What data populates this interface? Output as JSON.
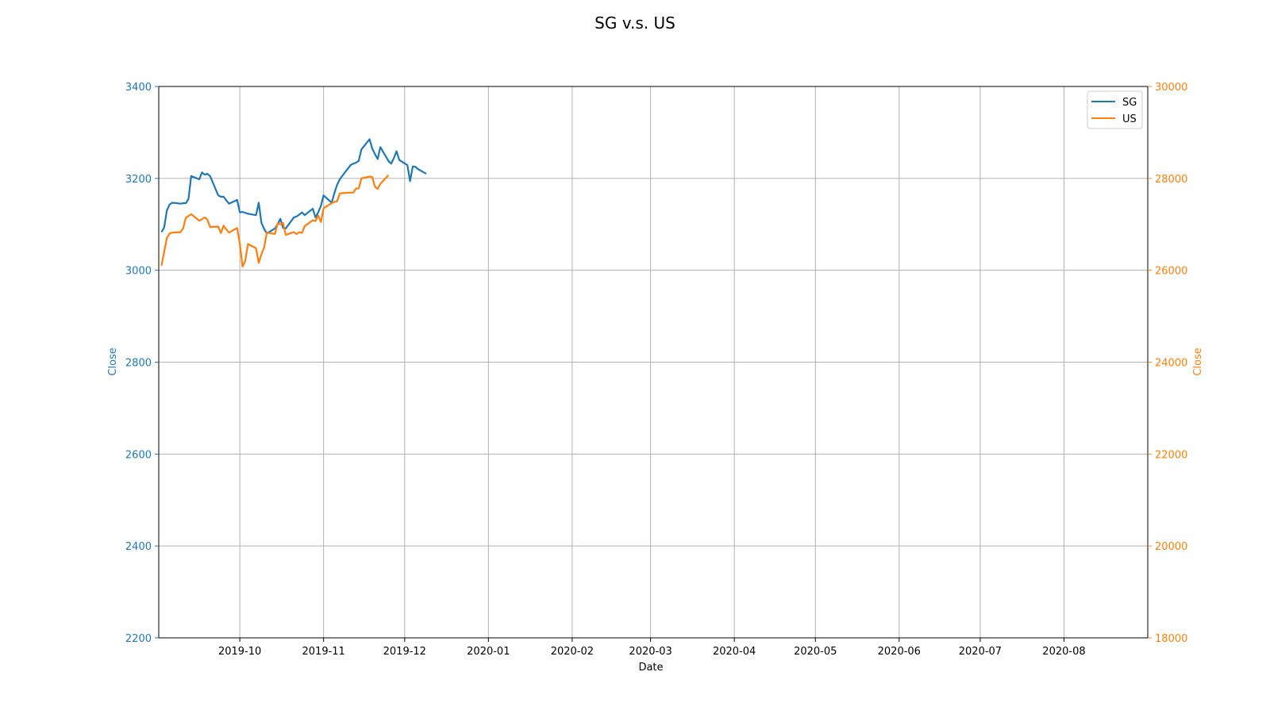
{
  "colors": {
    "left_axis": "#1f77b4",
    "right_axis": "#ff7f0e",
    "grid": "#b0b0b0",
    "spine": "#000000"
  },
  "chart_data": {
    "type": "line",
    "title": "SG v.s. US",
    "xlabel": "Date",
    "ylabel_left": "Close",
    "ylabel_right": "Close",
    "x_range": [
      "2019-09-01",
      "2020-08-31"
    ],
    "ylim_left": [
      2200,
      3400
    ],
    "ylim_right": [
      18000,
      30000
    ],
    "y_ticks_left": [
      2200,
      2400,
      2600,
      2800,
      3000,
      3200,
      3400
    ],
    "y_ticks_right": [
      18000,
      20000,
      22000,
      24000,
      26000,
      28000,
      30000
    ],
    "x_ticks": [
      "2019-10-01",
      "2019-11-01",
      "2019-12-01",
      "2020-01-01",
      "2020-02-01",
      "2020-03-01",
      "2020-04-01",
      "2020-05-01",
      "2020-06-01",
      "2020-07-01",
      "2020-08-01"
    ],
    "x_tick_labels": [
      "2019-10",
      "2019-11",
      "2019-12",
      "2020-01",
      "2020-02",
      "2020-03",
      "2020-04",
      "2020-05",
      "2020-06",
      "2020-07",
      "2020-08"
    ],
    "grid": true,
    "legend_position": "top-right",
    "series": [
      {
        "name": "SG",
        "axis": "left",
        "color": "#1f77b4",
        "points": [
          [
            "2019-09-02",
            3083
          ],
          [
            "2019-09-03",
            3093
          ],
          [
            "2019-09-04",
            3130
          ],
          [
            "2019-09-05",
            3143
          ],
          [
            "2019-09-06",
            3147
          ],
          [
            "2019-09-09",
            3145
          ],
          [
            "2019-09-10",
            3146
          ],
          [
            "2019-09-11",
            3146
          ],
          [
            "2019-09-12",
            3155
          ],
          [
            "2019-09-13",
            3205
          ],
          [
            "2019-09-16",
            3198
          ],
          [
            "2019-09-17",
            3213
          ],
          [
            "2019-09-18",
            3208
          ],
          [
            "2019-09-19",
            3210
          ],
          [
            "2019-09-20",
            3205
          ],
          [
            "2019-09-23",
            3163
          ],
          [
            "2019-09-24",
            3160
          ],
          [
            "2019-09-25",
            3160
          ],
          [
            "2019-09-26",
            3152
          ],
          [
            "2019-09-27",
            3145
          ],
          [
            "2019-09-30",
            3153
          ],
          [
            "2019-10-01",
            3126
          ],
          [
            "2019-10-02",
            3127
          ],
          [
            "2019-10-03",
            3125
          ],
          [
            "2019-10-04",
            3123
          ],
          [
            "2019-10-07",
            3120
          ],
          [
            "2019-10-08",
            3147
          ],
          [
            "2019-10-09",
            3103
          ],
          [
            "2019-10-10",
            3090
          ],
          [
            "2019-10-11",
            3080
          ],
          [
            "2019-10-14",
            3091
          ],
          [
            "2019-10-15",
            3100
          ],
          [
            "2019-10-16",
            3112
          ],
          [
            "2019-10-17",
            3092
          ],
          [
            "2019-10-18",
            3091
          ],
          [
            "2019-10-21",
            3115
          ],
          [
            "2019-10-22",
            3117
          ],
          [
            "2019-10-23",
            3121
          ],
          [
            "2019-10-24",
            3126
          ],
          [
            "2019-10-25",
            3120
          ],
          [
            "2019-10-28",
            3134
          ],
          [
            "2019-10-29",
            3115
          ],
          [
            "2019-10-30",
            3126
          ],
          [
            "2019-10-31",
            3140
          ],
          [
            "2019-11-01",
            3163
          ],
          [
            "2019-11-04",
            3147
          ],
          [
            "2019-11-05",
            3168
          ],
          [
            "2019-11-06",
            3186
          ],
          [
            "2019-11-07",
            3198
          ],
          [
            "2019-11-08",
            3206
          ],
          [
            "2019-11-11",
            3229
          ],
          [
            "2019-11-12",
            3232
          ],
          [
            "2019-11-13",
            3234
          ],
          [
            "2019-11-14",
            3238
          ],
          [
            "2019-11-15",
            3263
          ],
          [
            "2019-11-18",
            3285
          ],
          [
            "2019-11-19",
            3265
          ],
          [
            "2019-11-20",
            3253
          ],
          [
            "2019-11-21",
            3242
          ],
          [
            "2019-11-22",
            3268
          ],
          [
            "2019-11-25",
            3238
          ],
          [
            "2019-11-26",
            3232
          ],
          [
            "2019-11-27",
            3244
          ],
          [
            "2019-11-28",
            3259
          ],
          [
            "2019-11-29",
            3240
          ],
          [
            "2019-12-02",
            3229
          ],
          [
            "2019-12-03",
            3194
          ],
          [
            "2019-12-04",
            3226
          ],
          [
            "2019-12-05",
            3225
          ],
          [
            "2019-12-06",
            3220
          ],
          [
            "2019-12-09",
            3210
          ]
        ]
      },
      {
        "name": "US",
        "axis": "right",
        "color": "#ff7f0e",
        "points": [
          [
            "2019-09-02",
            26100
          ],
          [
            "2019-09-03",
            26400
          ],
          [
            "2019-09-04",
            26700
          ],
          [
            "2019-09-05",
            26800
          ],
          [
            "2019-09-06",
            26820
          ],
          [
            "2019-09-09",
            26830
          ],
          [
            "2019-09-10",
            26910
          ],
          [
            "2019-09-11",
            27140
          ],
          [
            "2019-09-12",
            27180
          ],
          [
            "2019-09-13",
            27220
          ],
          [
            "2019-09-16",
            27080
          ],
          [
            "2019-09-17",
            27110
          ],
          [
            "2019-09-18",
            27150
          ],
          [
            "2019-09-19",
            27100
          ],
          [
            "2019-09-20",
            26940
          ],
          [
            "2019-09-23",
            26950
          ],
          [
            "2019-09-24",
            26810
          ],
          [
            "2019-09-25",
            26970
          ],
          [
            "2019-09-26",
            26890
          ],
          [
            "2019-09-27",
            26820
          ],
          [
            "2019-09-30",
            26920
          ],
          [
            "2019-10-01",
            26580
          ],
          [
            "2019-10-02",
            26080
          ],
          [
            "2019-10-03",
            26200
          ],
          [
            "2019-10-04",
            26570
          ],
          [
            "2019-10-07",
            26480
          ],
          [
            "2019-10-08",
            26160
          ],
          [
            "2019-10-09",
            26350
          ],
          [
            "2019-10-10",
            26500
          ],
          [
            "2019-10-11",
            26820
          ],
          [
            "2019-10-14",
            26790
          ],
          [
            "2019-10-15",
            27020
          ],
          [
            "2019-10-16",
            27000
          ],
          [
            "2019-10-17",
            27030
          ],
          [
            "2019-10-18",
            26770
          ],
          [
            "2019-10-21",
            26830
          ],
          [
            "2019-10-22",
            26790
          ],
          [
            "2019-10-23",
            26830
          ],
          [
            "2019-10-24",
            26810
          ],
          [
            "2019-10-25",
            26960
          ],
          [
            "2019-10-28",
            27090
          ],
          [
            "2019-10-29",
            27070
          ],
          [
            "2019-10-30",
            27190
          ],
          [
            "2019-10-31",
            27050
          ],
          [
            "2019-11-01",
            27350
          ],
          [
            "2019-11-04",
            27460
          ],
          [
            "2019-11-05",
            27490
          ],
          [
            "2019-11-06",
            27500
          ],
          [
            "2019-11-07",
            27670
          ],
          [
            "2019-11-08",
            27680
          ],
          [
            "2019-11-11",
            27690
          ],
          [
            "2019-11-12",
            27690
          ],
          [
            "2019-11-13",
            27780
          ],
          [
            "2019-11-14",
            27780
          ],
          [
            "2019-11-15",
            28000
          ],
          [
            "2019-11-18",
            28040
          ],
          [
            "2019-11-19",
            28030
          ],
          [
            "2019-11-20",
            27820
          ],
          [
            "2019-11-21",
            27770
          ],
          [
            "2019-11-22",
            27880
          ],
          [
            "2019-11-25",
            28070
          ]
        ]
      }
    ]
  }
}
